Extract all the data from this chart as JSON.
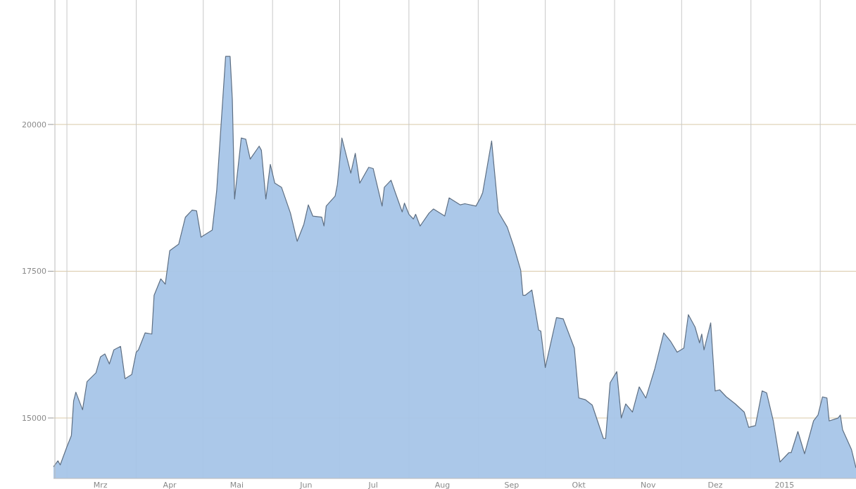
{
  "chart_data": {
    "type": "area",
    "xlim": [
      "2014-02-23",
      "2015-02-17"
    ],
    "ylim": [
      13970,
      22120
    ],
    "yticks": [
      15000,
      17500,
      20000
    ],
    "grid": true,
    "xticks": [
      {
        "value": "2014-03-01",
        "label": null
      },
      {
        "value": "2014-03-16",
        "label": "Mrz"
      },
      {
        "value": "2014-04-01",
        "label": null
      },
      {
        "value": "2014-04-16",
        "label": "Apr"
      },
      {
        "value": "2014-05-01",
        "label": null
      },
      {
        "value": "2014-05-16",
        "label": "Mai"
      },
      {
        "value": "2014-06-01",
        "label": null
      },
      {
        "value": "2014-06-16",
        "label": "Jun"
      },
      {
        "value": "2014-07-01",
        "label": null
      },
      {
        "value": "2014-07-16",
        "label": "Jul"
      },
      {
        "value": "2014-08-01",
        "label": null
      },
      {
        "value": "2014-08-16",
        "label": "Aug"
      },
      {
        "value": "2014-09-01",
        "label": null
      },
      {
        "value": "2014-09-16",
        "label": "Sep"
      },
      {
        "value": "2014-10-01",
        "label": null
      },
      {
        "value": "2014-10-16",
        "label": "Okt"
      },
      {
        "value": "2014-11-01",
        "label": null
      },
      {
        "value": "2014-11-16",
        "label": "Nov"
      },
      {
        "value": "2014-12-01",
        "label": null
      },
      {
        "value": "2014-12-16",
        "label": "Dez"
      },
      {
        "value": "2015-01-01",
        "label": null
      },
      {
        "value": "2015-01-16",
        "label": "2015"
      },
      {
        "value": "2015-02-01",
        "label": null
      }
    ],
    "x": [
      "2014-02-23",
      "2014-02-25",
      "2014-02-26",
      "2014-03-01",
      "2014-03-03",
      "2014-03-04",
      "2014-03-05",
      "2014-03-08",
      "2014-03-10",
      "2014-03-14",
      "2014-03-16",
      "2014-03-18",
      "2014-03-20",
      "2014-03-22",
      "2014-03-25",
      "2014-03-27",
      "2014-03-30",
      "2014-04-01",
      "2014-04-02",
      "2014-04-05",
      "2014-04-08",
      "2014-04-09",
      "2014-04-12",
      "2014-04-14",
      "2014-04-16",
      "2014-04-20",
      "2014-04-23",
      "2014-04-26",
      "2014-04-28",
      "2014-04-30",
      "2014-05-05",
      "2014-05-07",
      "2014-05-11",
      "2014-05-13",
      "2014-05-14",
      "2014-05-15",
      "2014-05-18",
      "2014-05-20",
      "2014-05-22",
      "2014-05-26",
      "2014-05-27",
      "2014-05-29",
      "2014-05-31",
      "2014-06-02",
      "2014-06-05",
      "2014-06-09",
      "2014-06-12",
      "2014-06-15",
      "2014-06-17",
      "2014-06-19",
      "2014-06-23",
      "2014-06-24",
      "2014-06-25",
      "2014-06-29",
      "2014-06-30",
      "2014-07-02",
      "2014-07-06",
      "2014-07-08",
      "2014-07-10",
      "2014-07-14",
      "2014-07-16",
      "2014-07-20",
      "2014-07-21",
      "2014-07-24",
      "2014-07-26",
      "2014-07-29",
      "2014-07-30",
      "2014-08-01",
      "2014-08-03",
      "2014-08-04",
      "2014-08-06",
      "2014-08-10",
      "2014-08-12",
      "2014-08-17",
      "2014-08-19",
      "2014-08-24",
      "2014-08-26",
      "2014-08-31",
      "2014-09-02",
      "2014-09-03",
      "2014-09-07",
      "2014-09-10",
      "2014-09-14",
      "2014-09-17",
      "2014-09-20",
      "2014-09-21",
      "2014-09-22",
      "2014-09-25",
      "2014-09-28",
      "2014-09-29",
      "2014-10-01",
      "2014-10-06",
      "2014-10-09",
      "2014-10-14",
      "2014-10-16",
      "2014-10-19",
      "2014-10-22",
      "2014-10-27",
      "2014-10-28",
      "2014-10-30",
      "2014-11-02",
      "2014-11-04",
      "2014-11-06",
      "2014-11-09",
      "2014-11-12",
      "2014-11-15",
      "2014-11-19",
      "2014-11-23",
      "2014-11-26",
      "2014-11-29",
      "2014-12-02",
      "2014-12-04",
      "2014-12-07",
      "2014-12-09",
      "2014-12-10",
      "2014-12-11",
      "2014-12-14",
      "2014-12-16",
      "2014-12-18",
      "2014-12-21",
      "2014-12-25",
      "2014-12-29",
      "2014-12-31",
      "2015-01-03",
      "2015-01-06",
      "2015-01-08",
      "2015-01-11",
      "2015-01-14",
      "2015-01-18",
      "2015-01-19",
      "2015-01-22",
      "2015-01-25",
      "2015-01-29",
      "2015-01-31",
      "2015-02-02",
      "2015-02-04",
      "2015-02-05",
      "2015-02-09",
      "2015-02-10",
      "2015-02-11",
      "2015-02-15",
      "2015-02-17"
    ],
    "series": [
      {
        "color": "#a7c5e8",
        "values": [
          14170,
          14270,
          14200,
          14510,
          14700,
          15290,
          15440,
          15140,
          15620,
          15770,
          16040,
          16090,
          15920,
          16160,
          16220,
          15670,
          15740,
          16120,
          16160,
          16450,
          16430,
          17090,
          17370,
          17280,
          17850,
          17960,
          18420,
          18540,
          18530,
          18080,
          18200,
          18870,
          21160,
          21160,
          20430,
          18730,
          19770,
          19750,
          19410,
          19630,
          19560,
          18730,
          19320,
          19000,
          18930,
          18490,
          18010,
          18300,
          18630,
          18440,
          18420,
          18270,
          18610,
          18780,
          18980,
          19770,
          19170,
          19510,
          19000,
          19270,
          19250,
          18610,
          18930,
          19050,
          18830,
          18510,
          18660,
          18470,
          18390,
          18470,
          18270,
          18490,
          18560,
          18440,
          18750,
          18630,
          18650,
          18610,
          18750,
          18840,
          19720,
          18510,
          18250,
          17910,
          17520,
          17090,
          17090,
          17180,
          16500,
          16480,
          15860,
          16710,
          16690,
          16190,
          15340,
          15310,
          15220,
          14650,
          14650,
          15600,
          15790,
          15000,
          15240,
          15100,
          15530,
          15340,
          15840,
          16450,
          16310,
          16120,
          16190,
          16760,
          16550,
          16280,
          16430,
          16160,
          16620,
          15460,
          15480,
          15360,
          15240,
          15100,
          14840,
          14870,
          15460,
          15430,
          14950,
          14250,
          14410,
          14410,
          14770,
          14390,
          14950,
          15050,
          15360,
          15340,
          14950,
          15000,
          15050,
          14800,
          14460,
          14150
        ]
      }
    ]
  }
}
